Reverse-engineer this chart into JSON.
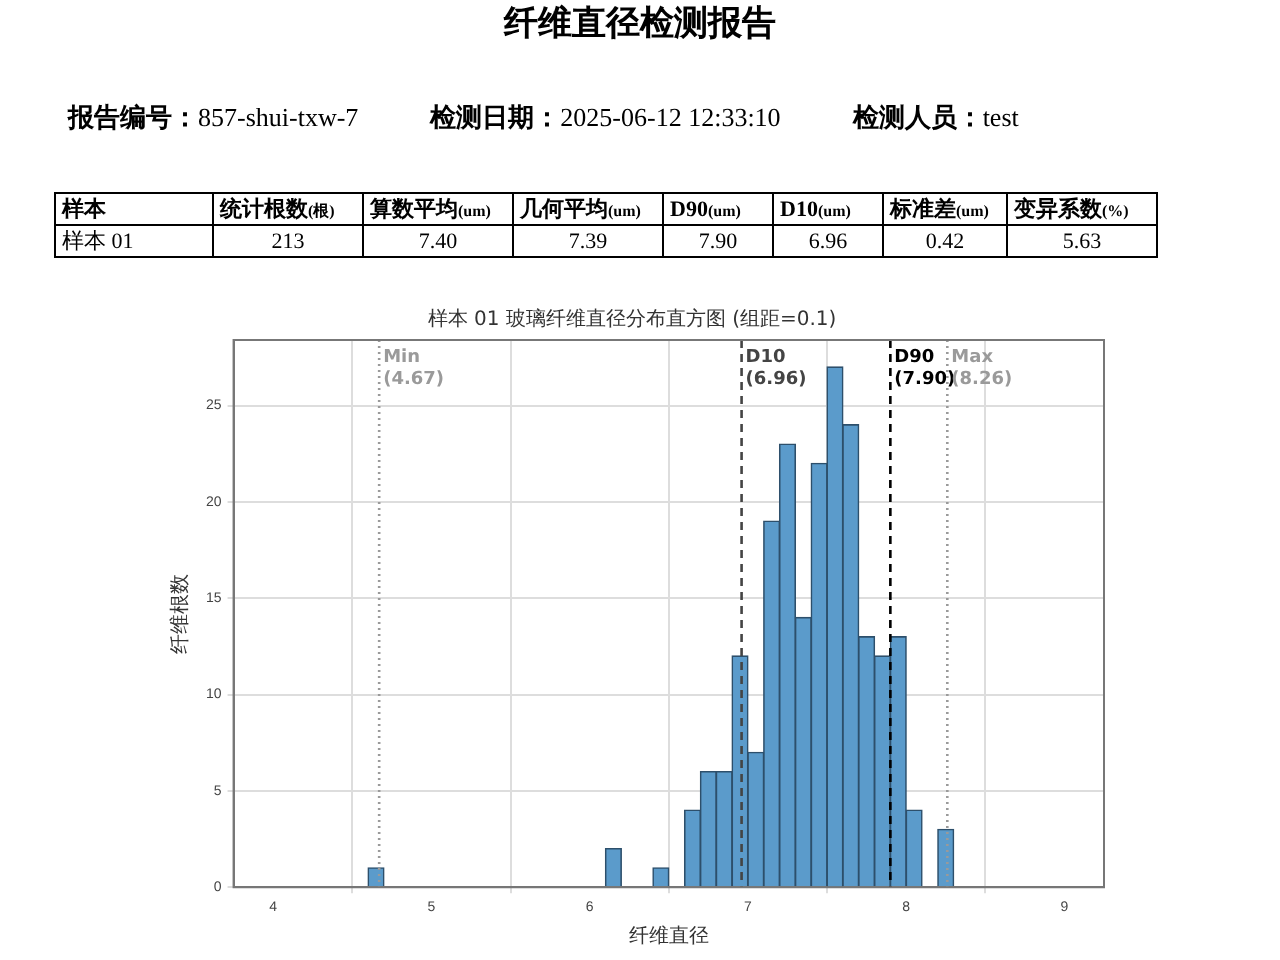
{
  "chart_data": {
    "type": "histogram",
    "title": "纤维直径检测报告",
    "subtitle": "样本 01 玻璃纤维直径分布直方图 (组距=0.1)",
    "xlabel": "纤维直径",
    "ylabel": "纤维根数",
    "annotations": [
      "报告编号：857-shui-txw-7",
      "检测日期：2025-06-12 12:33:10",
      "检测人员：test",
      "样本",
      "统计根数(根)",
      "算数平均(um)",
      "几何平均(um)",
      "D90(um)",
      "D10(um)",
      "标准差(um)",
      "变异系数(%)",
      "样本 01",
      "213",
      "7.40",
      "7.39",
      "7.90",
      "6.96",
      "0.42",
      "5.63"
    ],
    "bins": [
      4.6,
      4.7,
      4.8,
      4.9,
      5.0,
      5.1,
      5.2,
      5.3,
      5.4,
      5.5,
      5.6,
      5.7,
      5.8,
      5.9,
      6.0,
      6.1,
      6.2,
      6.3,
      6.4,
      6.5,
      6.6,
      6.7,
      6.8,
      6.9,
      7.0,
      7.1,
      7.2,
      7.3,
      7.4,
      7.5,
      7.6,
      7.7,
      7.8,
      7.9,
      8.0,
      8.1,
      8.2,
      8.3
    ],
    "values": [
      1,
      0,
      0,
      0,
      0,
      0,
      0,
      0,
      0,
      0,
      0,
      0,
      0,
      0,
      0,
      2,
      0,
      0,
      1,
      0,
      4,
      6,
      6,
      12,
      7,
      19,
      23,
      14,
      22,
      27,
      24,
      13,
      12,
      13,
      4,
      0,
      3
    ],
    "color": "#5b9bcb",
    "xlim": [
      3.75,
      9.25
    ],
    "xticks": [
      4,
      5,
      6,
      7,
      8,
      9
    ],
    "ylim": [
      0,
      28.4
    ],
    "yticks": [
      0,
      5,
      10,
      15,
      20,
      25
    ],
    "grid": true,
    "ref_lines": [
      {
        "axis": "x",
        "value": 4.67,
        "label": "Min (4.67)",
        "color": "#9a9a9a",
        "line_style": "dotted"
      },
      {
        "axis": "x",
        "value": 6.96,
        "label": "D10 (6.96)",
        "color": "#444444",
        "line_style": "dashed"
      },
      {
        "axis": "x",
        "value": 7.9,
        "label": "D90 (7.90)",
        "color": "#000000",
        "line_style": "dashed"
      },
      {
        "axis": "x",
        "value": 8.26,
        "label": "Max (8.26)",
        "color": "#9a9a9a",
        "line_style": "dotted"
      }
    ]
  }
}
